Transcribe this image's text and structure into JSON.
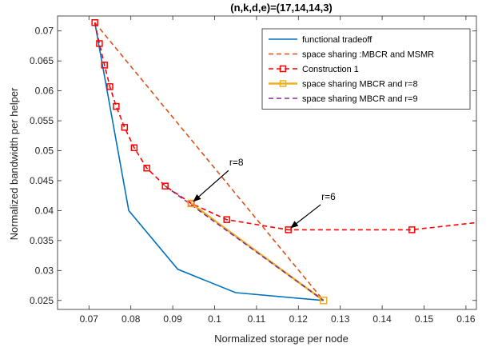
{
  "chart_data": {
    "type": "line",
    "title": "(n,k,d,e)=(17,14,14,3)",
    "xlabel": "Normalized storage per node",
    "ylabel": "Normalized bandwidth per helper",
    "xlim": [
      0.0625,
      0.1625
    ],
    "ylim": [
      0.0235,
      0.0725
    ],
    "xticks": [
      0.07,
      0.08,
      0.09,
      0.1,
      0.11,
      0.12,
      0.13,
      0.14,
      0.15,
      0.16
    ],
    "xtick_labels": [
      "0.07",
      "0.08",
      "0.09",
      "0.1",
      "0.11",
      "0.12",
      "0.13",
      "0.14",
      "0.15",
      "0.16"
    ],
    "yticks": [
      0.025,
      0.03,
      0.035,
      0.04,
      0.045,
      0.05,
      0.055,
      0.06,
      0.065,
      0.07
    ],
    "ytick_labels": [
      "0.025",
      "0.03",
      "0.035",
      "0.04",
      "0.045",
      "0.05",
      "0.055",
      "0.06",
      "0.065",
      "0.07"
    ],
    "grid": false,
    "legend_position": "top-right",
    "series": [
      {
        "name": "functional tradeoff",
        "color": "#0072BD",
        "style": "solid",
        "marker": "none",
        "x": [
          0.0714,
          0.0795,
          0.0912,
          0.105,
          0.126
        ],
        "y": [
          0.0714,
          0.04,
          0.0302,
          0.0263,
          0.025
        ]
      },
      {
        "name": "space sharing :MBCR and MSMR",
        "color": "#D95319",
        "style": "dashed",
        "marker": "none",
        "x": [
          0.0714,
          0.126
        ],
        "y": [
          0.0714,
          0.025
        ]
      },
      {
        "name": "Construction 1",
        "color": "#FF0000",
        "style": "dashed",
        "marker": "square",
        "x": [
          0.0714,
          0.0725,
          0.0737,
          0.075,
          0.0765,
          0.0785,
          0.0808,
          0.0838,
          0.0882,
          0.0944,
          0.1029,
          0.1176,
          0.1471,
          0.1625
        ],
        "y": [
          0.0714,
          0.0679,
          0.0643,
          0.0607,
          0.0574,
          0.0539,
          0.0505,
          0.0471,
          0.0441,
          0.0412,
          0.0385,
          0.0368,
          0.0368,
          0.038
        ],
        "marker_mask": [
          1,
          1,
          1,
          1,
          1,
          1,
          1,
          1,
          1,
          1,
          1,
          1,
          1,
          0
        ]
      },
      {
        "name": "space sharing MBCR and r=8",
        "color": "#EDB120",
        "style": "solid",
        "marker": "square",
        "x": [
          0.0944,
          0.126
        ],
        "y": [
          0.0412,
          0.025
        ]
      },
      {
        "name": "space sharing MBCR and r=9",
        "color": "#7E2F8E",
        "style": "dashed",
        "marker": "none",
        "x": [
          0.0882,
          0.126
        ],
        "y": [
          0.0441,
          0.025
        ]
      }
    ],
    "annotations": [
      {
        "text": "r=8",
        "text_x": 0.1035,
        "text_y": 0.0475,
        "point_x": 0.0944,
        "point_y": 0.0412
      },
      {
        "text": "r=6",
        "text_x": 0.1255,
        "text_y": 0.0418,
        "point_x": 0.1176,
        "point_y": 0.0368
      }
    ]
  }
}
